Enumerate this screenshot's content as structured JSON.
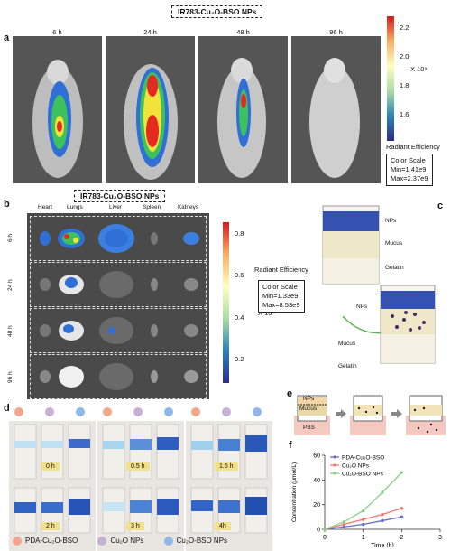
{
  "panel_a": {
    "label": "a",
    "title": "IR783-Cu₂O-BSO NPs",
    "times": [
      "6 h",
      "24 h",
      "48 h",
      "96 h"
    ],
    "colorbar": {
      "ticks": [
        "2.2",
        "2.0",
        "1.8",
        "1.6"
      ],
      "unit": "X 10⁹",
      "title": "Radiant Efficiency",
      "scale_title": "Color Scale",
      "scale_min": "Min=1.41e9",
      "scale_max": "Max=2.37e9"
    }
  },
  "panel_b": {
    "label": "b",
    "title": "IR783-Cu₂O-BSO NPs",
    "organs": [
      "Heart",
      "Lungs",
      "Liver",
      "Spleen",
      "Kidneys"
    ],
    "times": [
      "6 h",
      "24 h",
      "48 h",
      "96 h"
    ],
    "colorbar": {
      "ticks": [
        "0.8",
        "0.6",
        "0.4",
        "0.2"
      ],
      "unit": "X 10¹⁰",
      "title": "Radiant Efficiency",
      "scale_title": "Color Scale",
      "scale_min": "Min=1.33e9",
      "scale_max": "Max=8.53e9"
    }
  },
  "panel_c": {
    "label": "c",
    "labels_top": [
      "NPs",
      "Mucus",
      "Gelatin"
    ],
    "labels_bottom": [
      "NPs",
      "Mucus",
      "Gelatin"
    ]
  },
  "panel_d": {
    "label": "d",
    "times": [
      "0 h",
      "0.5 h",
      "1.5 h",
      "2 h",
      "3 h",
      "4h"
    ],
    "legend": [
      {
        "name": "PDA-Cu₂O-BSO",
        "color": "#f4a58d"
      },
      {
        "name": "Cu₂O NPs",
        "color": "#c7b0d6"
      },
      {
        "name": "Cu₂O-BSO NPs",
        "color": "#8fb8e8"
      }
    ]
  },
  "panel_e": {
    "label": "e",
    "layers": [
      "NPs",
      "Mucus",
      "PBS"
    ]
  },
  "panel_f": {
    "label": "f",
    "chart_data": {
      "type": "line",
      "xlabel": "Time (h)",
      "ylabel": "Concentration (μmol/L)",
      "xlim": [
        0,
        3
      ],
      "ylim": [
        0,
        60
      ],
      "xticks": [
        "0",
        "1",
        "2",
        "3"
      ],
      "yticks": [
        "0",
        "20",
        "40",
        "60"
      ],
      "legend_position": "top-left",
      "series": [
        {
          "name": "PDA-Cu₂O-BSO",
          "color": "#6b6fc4",
          "x": [
            0,
            0.5,
            1,
            1.5,
            2
          ],
          "y": [
            0,
            2,
            4,
            7,
            10
          ]
        },
        {
          "name": "Cu₂O NPs",
          "color": "#f07a72",
          "x": [
            0,
            0.5,
            1,
            1.5,
            2
          ],
          "y": [
            0,
            4,
            8,
            12,
            17
          ]
        },
        {
          "name": "Cu₂O-BSO NPs",
          "color": "#8fd08a",
          "x": [
            0,
            0.5,
            1,
            1.5,
            2
          ],
          "y": [
            0,
            6,
            15,
            30,
            46
          ]
        }
      ]
    }
  }
}
